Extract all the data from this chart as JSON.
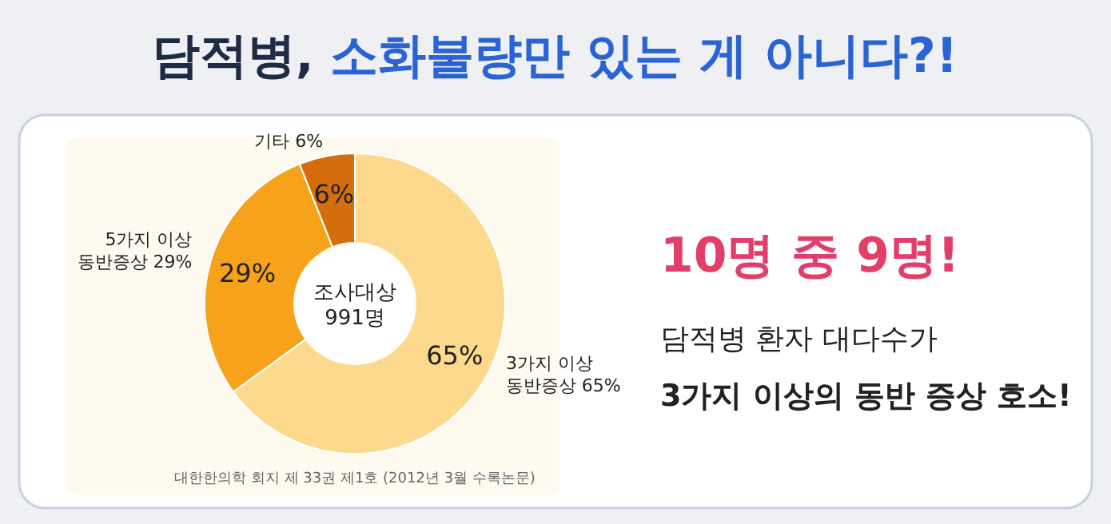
{
  "chart_data": {
    "type": "donut",
    "title": "담적병, 소화불량만 있는 게 아니다?!",
    "categories": [
      "3가지 이상\n동반증상",
      "5가지 이상\n동반증상",
      "기타"
    ],
    "values": [
      65,
      29,
      6
    ],
    "value_labels": [
      "65%",
      "29%",
      "6%"
    ],
    "colors": [
      "#fcd98c",
      "#f6a31b",
      "#d46e0c"
    ],
    "subtitle": "조사대상\n991명",
    "annotations": [
      "대한한의학 회지 제 33권 제1호 (2012년 3월 수록논문)",
      "10명 중 9명!",
      "담적병 환자 대다수가",
      "3가지 이상의 동반 증상 호소!"
    ]
  }
}
